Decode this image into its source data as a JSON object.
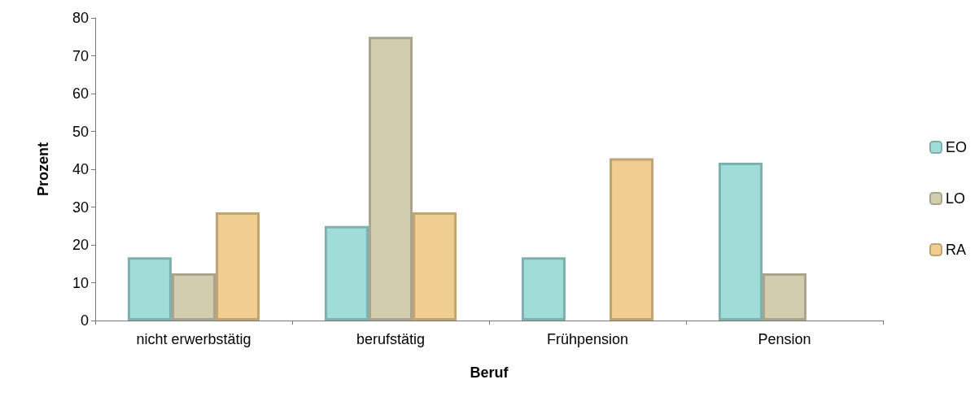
{
  "chart_data": {
    "type": "bar",
    "xlabel": "Beruf",
    "ylabel": "Prozent",
    "categories": [
      "nicht erwerbstätig",
      "berufstätig",
      "Frühpension",
      "Pension"
    ],
    "series": [
      {
        "name": "EO",
        "color": "#a0dcd8",
        "values": [
          16.7,
          25,
          16.7,
          41.7
        ]
      },
      {
        "name": "LO",
        "color": "#d3cdb0",
        "values": [
          12.5,
          75,
          null,
          12.5
        ]
      },
      {
        "name": "RA",
        "color": "#f0cd90",
        "values": [
          28.6,
          28.6,
          42.9,
          null
        ]
      }
    ],
    "ylim": [
      0,
      80
    ],
    "yticks": [
      0,
      10,
      20,
      30,
      40,
      50,
      60,
      70,
      80
    ],
    "legend": "right",
    "grid": false
  }
}
